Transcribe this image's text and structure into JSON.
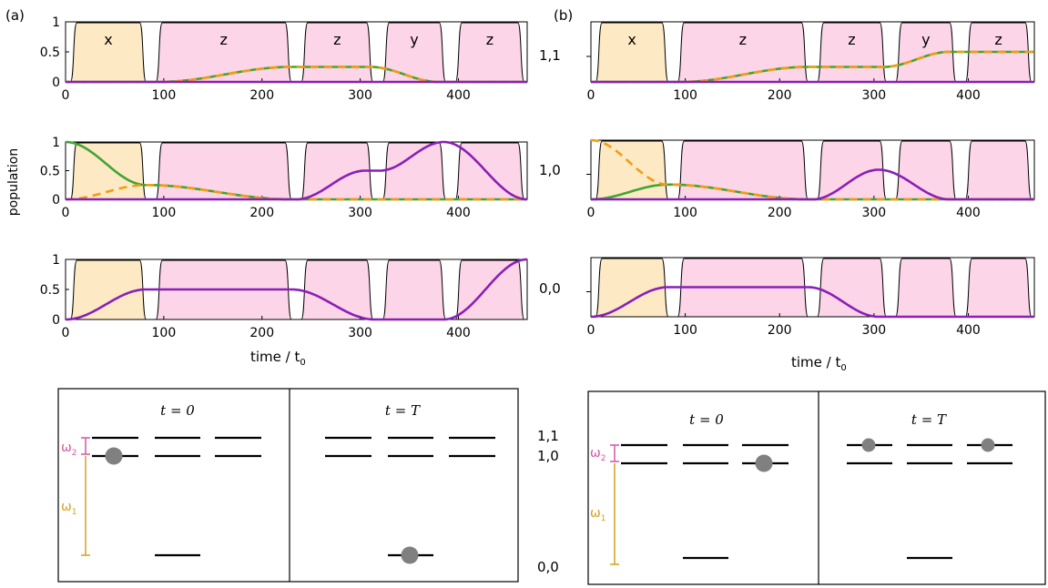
{
  "panel_a": {
    "label": "(a)"
  },
  "panel_b": {
    "label": "(b)"
  },
  "ylabel": "population",
  "xlabel_main": "time / t",
  "xlabel_sub": "0",
  "colors": {
    "x_pulse": "#fde9c4",
    "y_pulse": "#fcd5e8",
    "z_pulse": "#fcd5e8",
    "green": "#3fa535",
    "orange": "#f39c12",
    "purple": "#8a1fb8",
    "omega1": "#d4a020",
    "omega2": "#d455a6",
    "atom": "#808080"
  },
  "pulses": [
    {
      "kind": "x",
      "start": 5,
      "end": 82
    },
    {
      "kind": "z",
      "start": 92,
      "end": 230
    },
    {
      "kind": "z",
      "start": 240,
      "end": 313
    },
    {
      "kind": "y",
      "start": 323,
      "end": 387
    },
    {
      "kind": "z",
      "start": 397,
      "end": 467
    }
  ],
  "pulse_labels": [
    "x",
    "z",
    "z",
    "y",
    "z"
  ],
  "chart_data": [
    {
      "type": "line",
      "panel": "a",
      "row": "1,1",
      "xlim": [
        0,
        470
      ],
      "ylim": [
        0,
        1
      ],
      "xticks": [
        "0",
        "100",
        "200",
        "300",
        "400"
      ],
      "yticks": [
        "0",
        "0.5",
        "1"
      ],
      "series": [
        {
          "style": "green",
          "x": [
            0,
            95,
            230,
            310,
            380,
            470
          ],
          "y": [
            0,
            0,
            0.25,
            0.25,
            0,
            0
          ]
        },
        {
          "style": "orange-dashed",
          "x": [
            0,
            95,
            230,
            310,
            380,
            470
          ],
          "y": [
            0,
            0,
            0.25,
            0.25,
            0,
            0
          ]
        },
        {
          "style": "purple",
          "x": [
            0,
            470
          ],
          "y": [
            0,
            0
          ]
        }
      ]
    },
    {
      "type": "line",
      "panel": "a",
      "row": "1,0",
      "xlim": [
        0,
        470
      ],
      "ylim": [
        0,
        1
      ],
      "xticks": [
        "0",
        "100",
        "200",
        "300",
        "400"
      ],
      "yticks": [
        "0",
        "0.5",
        "1"
      ],
      "series": [
        {
          "style": "green",
          "x": [
            0,
            82,
            230,
            470
          ],
          "y": [
            1,
            0.25,
            0,
            0
          ]
        },
        {
          "style": "orange-dashed",
          "x": [
            0,
            82,
            230,
            470
          ],
          "y": [
            0,
            0.25,
            0,
            0
          ]
        },
        {
          "style": "purple",
          "x": [
            0,
            235,
            305,
            320,
            385,
            470
          ],
          "y": [
            0,
            0,
            0.5,
            0.5,
            1,
            0
          ]
        }
      ]
    },
    {
      "type": "line",
      "panel": "a",
      "row": "0,0",
      "xlim": [
        0,
        470
      ],
      "ylim": [
        0,
        1
      ],
      "xticks": [
        "0",
        "100",
        "200",
        "300",
        "400"
      ],
      "yticks": [
        "0",
        "0.5",
        "1"
      ],
      "series": [
        {
          "style": "purple",
          "x": [
            0,
            82,
            230,
            315,
            385,
            470
          ],
          "y": [
            0,
            0.5,
            0.5,
            0,
            0,
            1
          ]
        }
      ]
    },
    {
      "type": "line",
      "panel": "b",
      "row": "1,1",
      "xlim": [
        0,
        470
      ],
      "ylim": [
        0,
        1
      ],
      "xticks": [
        "0",
        "100",
        "200",
        "300",
        "400"
      ],
      "series": [
        {
          "style": "green",
          "x": [
            0,
            95,
            230,
            310,
            380,
            470
          ],
          "y": [
            0,
            0,
            0.25,
            0.25,
            0.5,
            0.5
          ]
        },
        {
          "style": "orange-dashed",
          "x": [
            0,
            95,
            230,
            310,
            380,
            470
          ],
          "y": [
            0,
            0,
            0.25,
            0.25,
            0.5,
            0.5
          ]
        },
        {
          "style": "purple",
          "x": [
            0,
            470
          ],
          "y": [
            0,
            0
          ]
        }
      ]
    },
    {
      "type": "line",
      "panel": "b",
      "row": "1,0",
      "xlim": [
        0,
        470
      ],
      "ylim": [
        0,
        1
      ],
      "xticks": [
        "0",
        "100",
        "200",
        "300",
        "400"
      ],
      "series": [
        {
          "style": "green",
          "x": [
            0,
            82,
            230,
            470
          ],
          "y": [
            0,
            0.25,
            0,
            0
          ]
        },
        {
          "style": "orange-dashed",
          "x": [
            0,
            82,
            230,
            470
          ],
          "y": [
            1,
            0.25,
            0,
            0
          ]
        },
        {
          "style": "purple",
          "x": [
            0,
            235,
            305,
            380,
            470
          ],
          "y": [
            0,
            0,
            0.5,
            0,
            0
          ]
        }
      ]
    },
    {
      "type": "line",
      "panel": "b",
      "row": "0,0",
      "xlim": [
        0,
        470
      ],
      "ylim": [
        0,
        1
      ],
      "xticks": [
        "0",
        "100",
        "200",
        "300",
        "400"
      ],
      "series": [
        {
          "style": "purple",
          "x": [
            0,
            82,
            230,
            305,
            470
          ],
          "y": [
            0,
            0.5,
            0.5,
            0,
            0
          ]
        }
      ]
    }
  ],
  "state_labels": {
    "s11": "1,1",
    "s10": "1,0",
    "s00": "0,0"
  },
  "energy": {
    "t0": "t = 0",
    "tT": "t = T",
    "omega1": "ω",
    "omega2": "ω",
    "sub1": "1",
    "sub2": "2"
  }
}
